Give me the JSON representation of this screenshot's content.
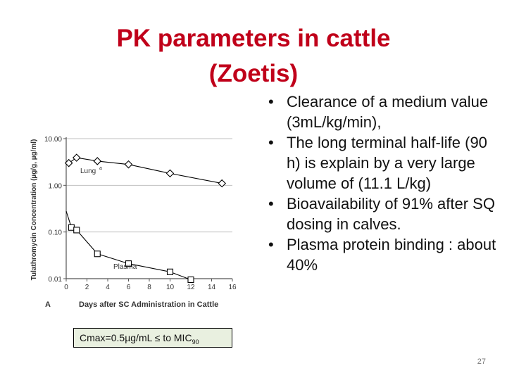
{
  "slide": {
    "title_line1": "PK parameters in cattle",
    "title_line2": "(Zoetis)",
    "bullets": [
      "Clearance of  a medium value (3mL/kg/min),",
      "The  long terminal half-life  (90 h) is explain by a very large volume  of (11.1 L/kg)",
      "Bioavailability of 91% after SQ dosing in calves.",
      "Plasma protein binding : about 40%"
    ],
    "cmax_text": "Cmax=0.5µg/mL  ≤  to MIC",
    "cmax_sub": "90",
    "page_number": "27"
  },
  "chart_data": {
    "type": "line",
    "panel_label": "A",
    "xlabel": "Days after SC Administration in Cattle",
    "ylabel": "Tulathromycin Concentration (µg/g, µg/ml)",
    "x_ticks": [
      0,
      2,
      4,
      6,
      8,
      10,
      12,
      14,
      16
    ],
    "y_ticks": [
      {
        "value": 0.01,
        "label": "0.01"
      },
      {
        "value": 0.1,
        "label": "0.10"
      },
      {
        "value": 1,
        "label": "1.00"
      },
      {
        "value": 10,
        "label": "10.00"
      }
    ],
    "xlim": [
      0,
      16
    ],
    "ylim": [
      0.01,
      10
    ],
    "yscale": "log",
    "series": [
      {
        "name": "Lung",
        "name_sup": "a",
        "color": "#000000",
        "marker": "diamond",
        "points": [
          {
            "x": 0.25,
            "y": 3.0
          },
          {
            "x": 1,
            "y": 3.9
          },
          {
            "x": 3,
            "y": 3.3
          },
          {
            "x": 6,
            "y": 2.8
          },
          {
            "x": 10,
            "y": 1.8
          },
          {
            "x": 15,
            "y": 1.1
          }
        ]
      },
      {
        "name": "Plasma",
        "color": "#000000",
        "marker": "square",
        "points": [
          {
            "x": 0,
            "y": 0.28
          },
          {
            "x": 0.5,
            "y": 0.125
          },
          {
            "x": 1,
            "y": 0.11
          },
          {
            "x": 3,
            "y": 0.034
          },
          {
            "x": 6,
            "y": 0.021
          },
          {
            "x": 10,
            "y": 0.014
          },
          {
            "x": 12,
            "y": 0.0095
          }
        ]
      }
    ]
  }
}
